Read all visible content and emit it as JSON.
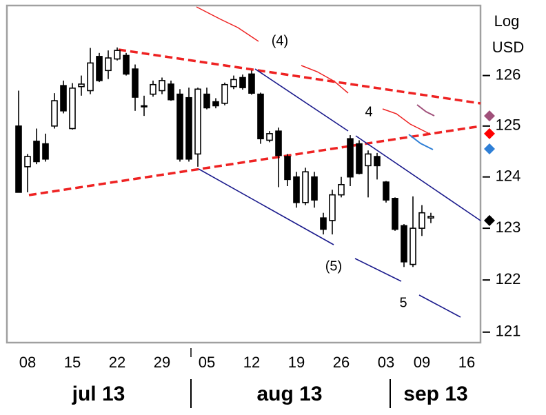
{
  "chart_data": {
    "type": "candlestick",
    "ylabel": [
      "Log",
      "USD"
    ],
    "log_scale": true,
    "ylim": [
      120.8,
      127.4
    ],
    "yticks": [
      121,
      122,
      123,
      124,
      125,
      126
    ],
    "categories": [
      null,
      "08",
      null,
      null,
      null,
      null,
      "15",
      null,
      null,
      null,
      null,
      "22",
      null,
      null,
      null,
      null,
      "29",
      null,
      null,
      null,
      null,
      "05",
      null,
      null,
      null,
      null,
      "12",
      null,
      null,
      null,
      null,
      "19",
      null,
      null,
      null,
      null,
      "26",
      null,
      null,
      null,
      null,
      "03",
      null,
      null,
      null,
      "09",
      null,
      null,
      null,
      null,
      "16",
      null
    ],
    "months": [
      "jul 13",
      "aug 13",
      "sep 13"
    ],
    "color": "#000000",
    "open": [
      125.0,
      124.2,
      124.7,
      124.65,
      125.0,
      125.8,
      124.95,
      125.78,
      125.7,
      126.38,
      126.1,
      126.33,
      126.4,
      126.13,
      125.4,
      125.63,
      125.7,
      125.83,
      125.63,
      125.56,
      124.45,
      125.63,
      125.48,
      125.45,
      125.78,
      125.96,
      126.03,
      125.63,
      124.72,
      124.9,
      124.4,
      124.0,
      123.5,
      124.0,
      123.2,
      123.15,
      123.65,
      124.75,
      124.65,
      124.22,
      124.4,
      123.9,
      123.58,
      123.05,
      122.3,
      123.0,
      123.2,
      null,
      null,
      null,
      null,
      null
    ],
    "high": [
      125.7,
      124.45,
      124.95,
      124.85,
      125.65,
      125.9,
      125.85,
      126.0,
      126.55,
      126.45,
      126.5,
      126.56,
      126.45,
      126.22,
      125.6,
      125.9,
      125.96,
      125.9,
      125.73,
      125.76,
      125.76,
      125.76,
      125.55,
      125.86,
      126.0,
      126.02,
      126.1,
      125.66,
      124.9,
      124.97,
      124.45,
      124.1,
      124.18,
      124.1,
      123.3,
      123.75,
      124.0,
      124.82,
      124.72,
      124.52,
      124.47,
      123.92,
      123.6,
      123.08,
      123.62,
      123.45,
      123.3,
      null,
      null,
      null,
      null,
      null
    ],
    "low": [
      123.7,
      123.7,
      124.25,
      124.3,
      124.95,
      125.25,
      124.93,
      125.6,
      125.63,
      125.87,
      125.93,
      126.3,
      126.0,
      125.3,
      125.2,
      125.58,
      125.63,
      125.5,
      124.3,
      124.3,
      124.2,
      125.33,
      125.35,
      125.41,
      125.73,
      125.72,
      125.62,
      124.65,
      124.68,
      123.8,
      123.82,
      123.4,
      123.45,
      123.4,
      122.88,
      122.88,
      123.6,
      123.82,
      124.05,
      123.6,
      123.95,
      123.5,
      122.95,
      122.25,
      122.25,
      122.85,
      123.1,
      null,
      null,
      null,
      null,
      null
    ],
    "close": [
      123.7,
      124.4,
      124.3,
      124.35,
      125.5,
      125.3,
      125.75,
      125.83,
      126.25,
      125.9,
      126.35,
      126.5,
      126.03,
      125.57,
      125.38,
      125.82,
      125.9,
      125.52,
      124.35,
      124.35,
      125.73,
      125.36,
      125.4,
      125.82,
      125.92,
      125.76,
      125.65,
      124.75,
      124.85,
      124.42,
      123.95,
      123.5,
      124.1,
      123.55,
      122.98,
      123.65,
      123.85,
      124.0,
      124.07,
      124.45,
      124.22,
      123.55,
      122.98,
      122.35,
      123.0,
      123.3,
      123.23,
      null,
      null,
      null,
      null,
      null
    ],
    "markers": [
      {
        "color": "#a0507a",
        "value": 125.2
      },
      {
        "color": "#ff0000",
        "value": 124.85
      },
      {
        "color": "#2f7fd6",
        "value": 124.55
      },
      {
        "color": "#000000",
        "value": 123.15
      }
    ],
    "annotations": [
      "(4)",
      "4",
      "(5)",
      "5"
    ]
  }
}
